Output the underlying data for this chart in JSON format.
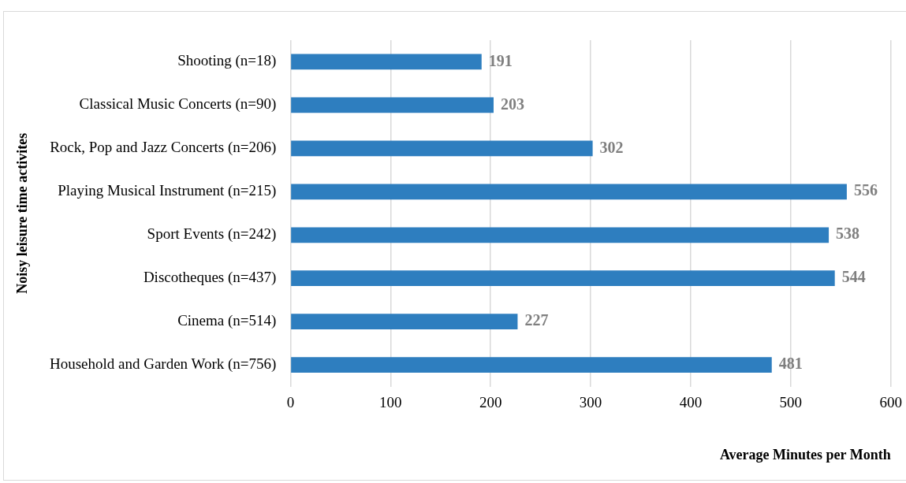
{
  "chart_data": {
    "type": "bar",
    "orientation": "horizontal",
    "xlabel": "Average Minutes per Month",
    "ylabel": "Noisy leisure time activites",
    "categories": [
      "Shooting (n=18)",
      "Classical Music Concerts (n=90)",
      "Rock, Pop and Jazz Concerts (n=206)",
      "Playing Musical Instrument (n=215)",
      "Sport Events (n=242)",
      "Discotheques (n=437)",
      "Cinema (n=514)",
      "Household and Garden Work (n=756)"
    ],
    "values": [
      191,
      203,
      302,
      556,
      538,
      544,
      227,
      481
    ],
    "color": "#2e7ebf",
    "xlim": [
      0,
      600
    ],
    "xticks": [
      0,
      100,
      200,
      300,
      400,
      500,
      600
    ],
    "grid": "x",
    "data_labels": true
  }
}
